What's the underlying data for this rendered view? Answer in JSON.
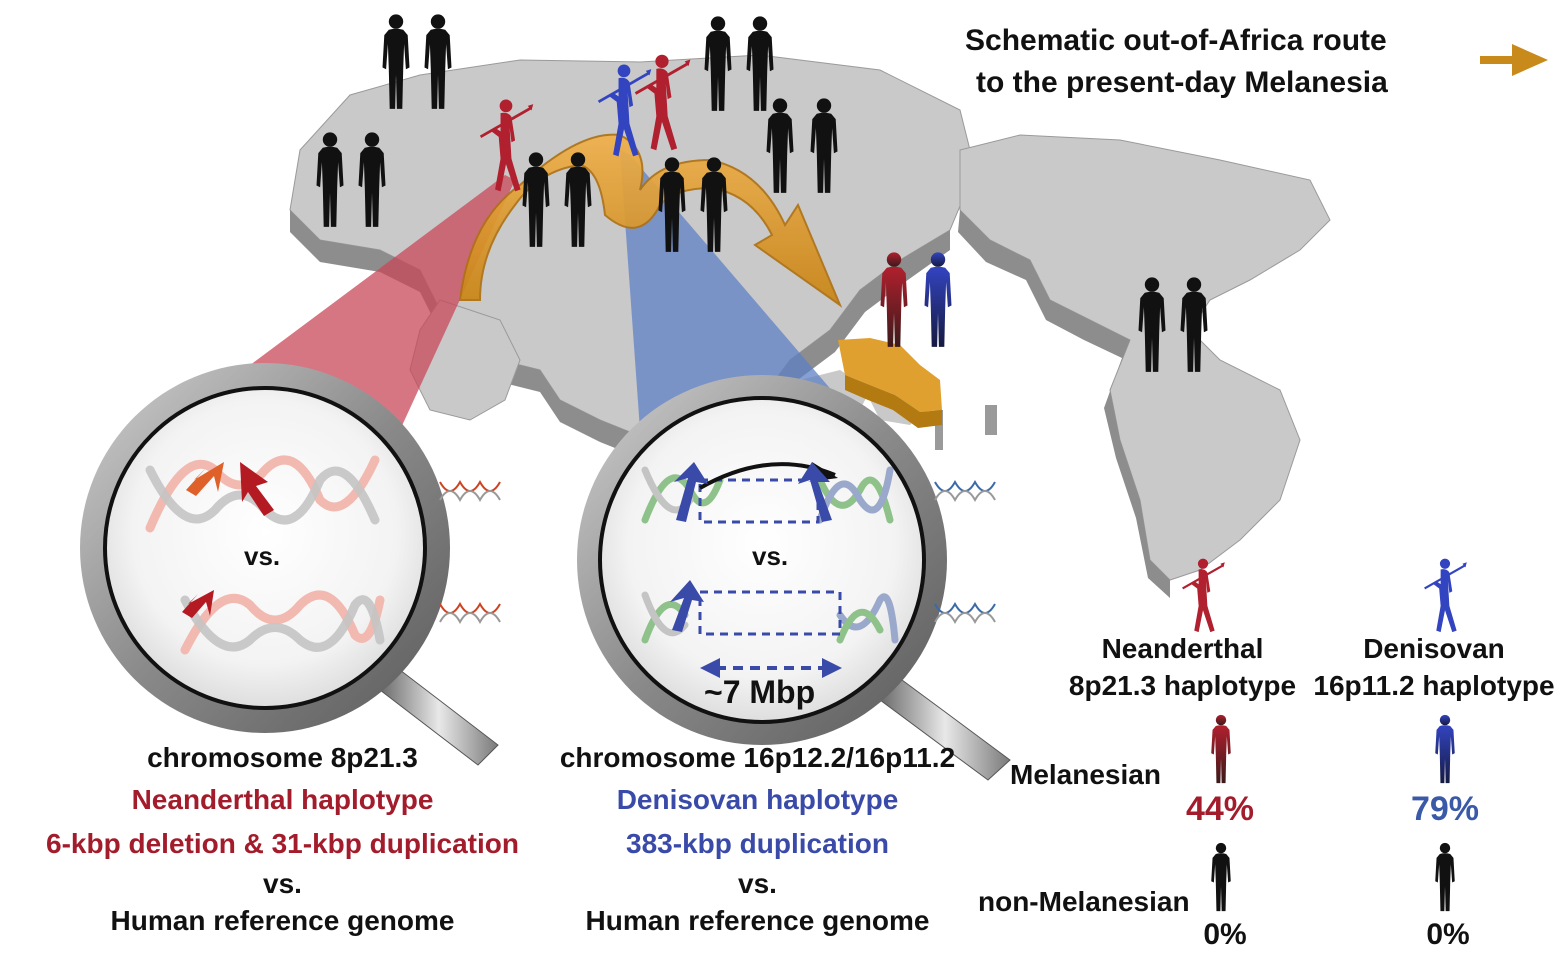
{
  "legend": {
    "route_text_line1": "Schematic out-of-Africa route",
    "route_text_line2": "to the present-day Melanesia",
    "route_color": "#c98a1c"
  },
  "neanderthal_panel": {
    "vs_label": "vs.",
    "caption_line1": "chromosome 8p21.3",
    "caption_line2": "Neanderthal haplotype",
    "caption_line3": "6-kbp deletion & 31-kbp duplication",
    "caption_line4": "vs.",
    "caption_line5": "Human reference genome",
    "color": "#a31c2c"
  },
  "denisovan_panel": {
    "vs_label": "vs.",
    "size_label": "~7 Mbp",
    "caption_line1": "chromosome 16p12.2/16p11.2",
    "caption_line2": "Denisovan haplotype",
    "caption_line3": "383-kbp duplication",
    "caption_line4": "vs.",
    "caption_line5": "Human reference genome",
    "color": "#3a4aa8"
  },
  "frequency_table": {
    "col1_line1": "Neanderthal",
    "col1_line2": "8p21.3 haplotype",
    "col2_line1": "Denisovan",
    "col2_line2": "16p11.2 haplotype",
    "row1_label": "Melanesian",
    "row2_label": "non-Melanesian",
    "row1_col1": "44%",
    "row1_col2": "79%",
    "row2_col1": "0%",
    "row2_col2": "0%"
  },
  "colors": {
    "map": "#c9c9c9",
    "map_side": "#8d8d8d",
    "neanderthal": "#b0202e",
    "denisovan": "#3344c0",
    "neanderthal_cone": "#c8485a",
    "denisovan_cone": "#5f80c4"
  }
}
